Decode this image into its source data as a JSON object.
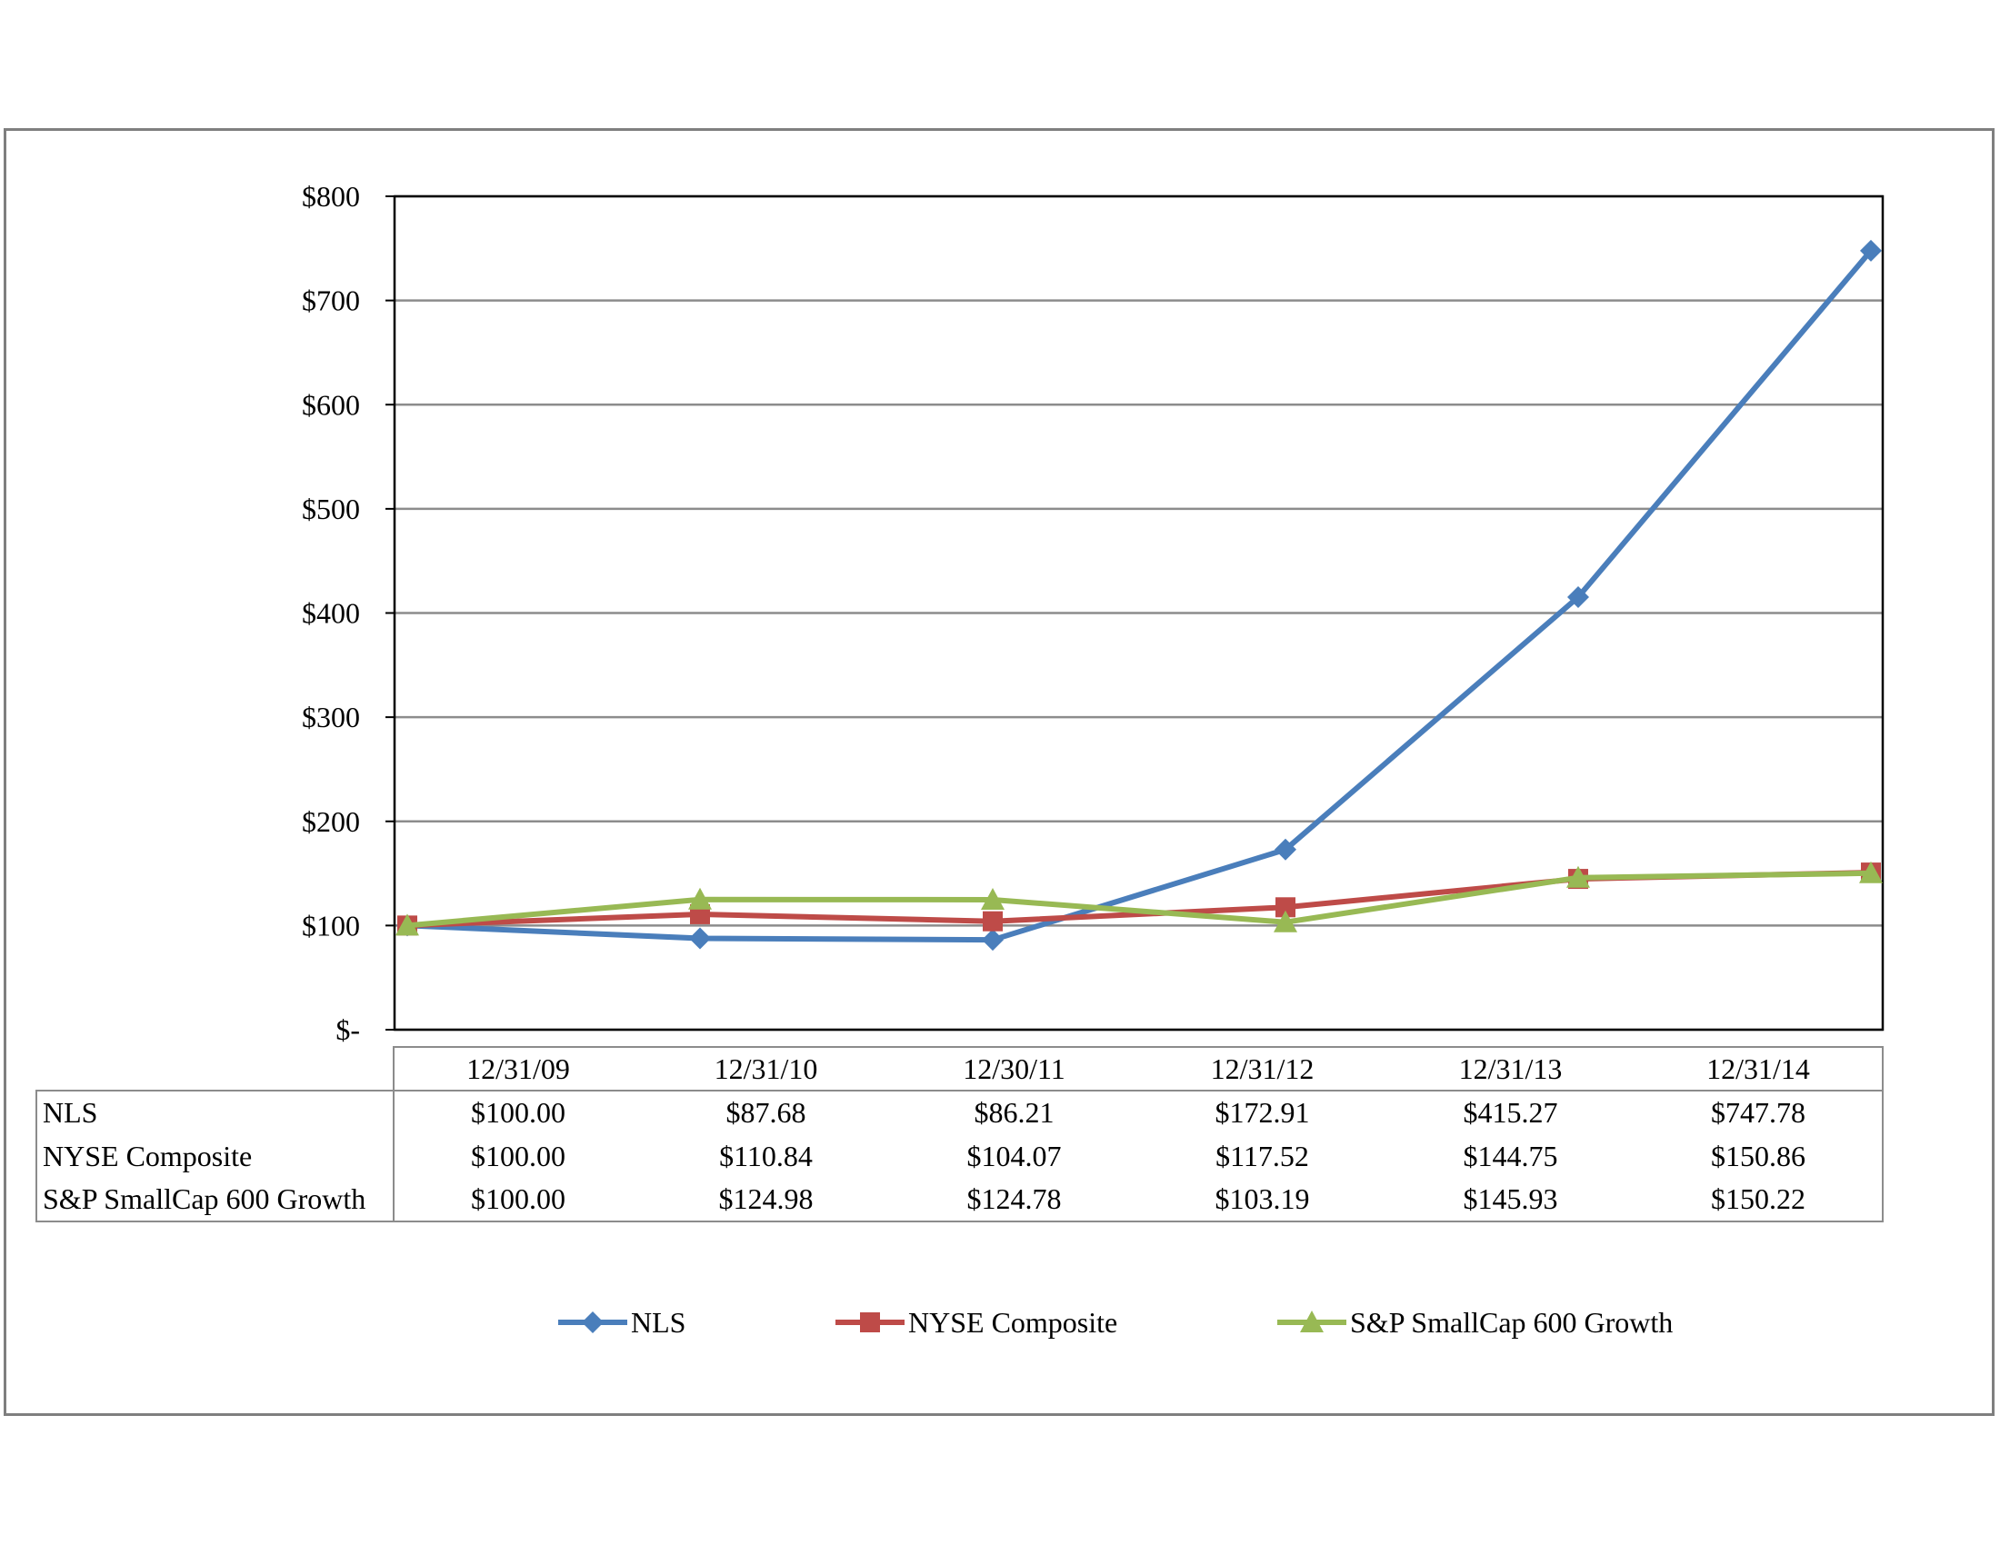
{
  "chart_data": {
    "type": "line",
    "categories": [
      "12/31/09",
      "12/31/10",
      "12/30/11",
      "12/31/12",
      "12/31/13",
      "12/31/14"
    ],
    "ylim": [
      0,
      800
    ],
    "y_ticks": [
      0,
      100,
      200,
      300,
      400,
      500,
      600,
      700,
      800
    ],
    "y_tick_labels": [
      "$-",
      "$100",
      "$200",
      "$300",
      "$400",
      "$500",
      "$600",
      "$700",
      "$800"
    ],
    "grid": true,
    "legend_position": "bottom",
    "series": [
      {
        "name": "NLS",
        "color": "#4a7ebb",
        "marker": "diamond",
        "values": [
          100.0,
          87.68,
          86.21,
          172.91,
          415.27,
          747.78
        ],
        "labels": [
          "$100.00",
          "$87.68",
          "$86.21",
          "$172.91",
          "$415.27",
          "$747.78"
        ]
      },
      {
        "name": "NYSE Composite",
        "color": "#be4b48",
        "marker": "square",
        "values": [
          100.0,
          110.84,
          104.07,
          117.52,
          144.75,
          150.86
        ],
        "labels": [
          "$100.00",
          "$110.84",
          "$104.07",
          "$117.52",
          "$144.75",
          "$150.86"
        ]
      },
      {
        "name": "S&P SmallCap 600 Growth",
        "color": "#98b954",
        "marker": "triangle",
        "values": [
          100.0,
          124.98,
          124.78,
          103.19,
          145.93,
          150.22
        ],
        "labels": [
          "$100.00",
          "$124.98",
          "$124.78",
          "$103.19",
          "$145.93",
          "$150.22"
        ]
      }
    ]
  }
}
